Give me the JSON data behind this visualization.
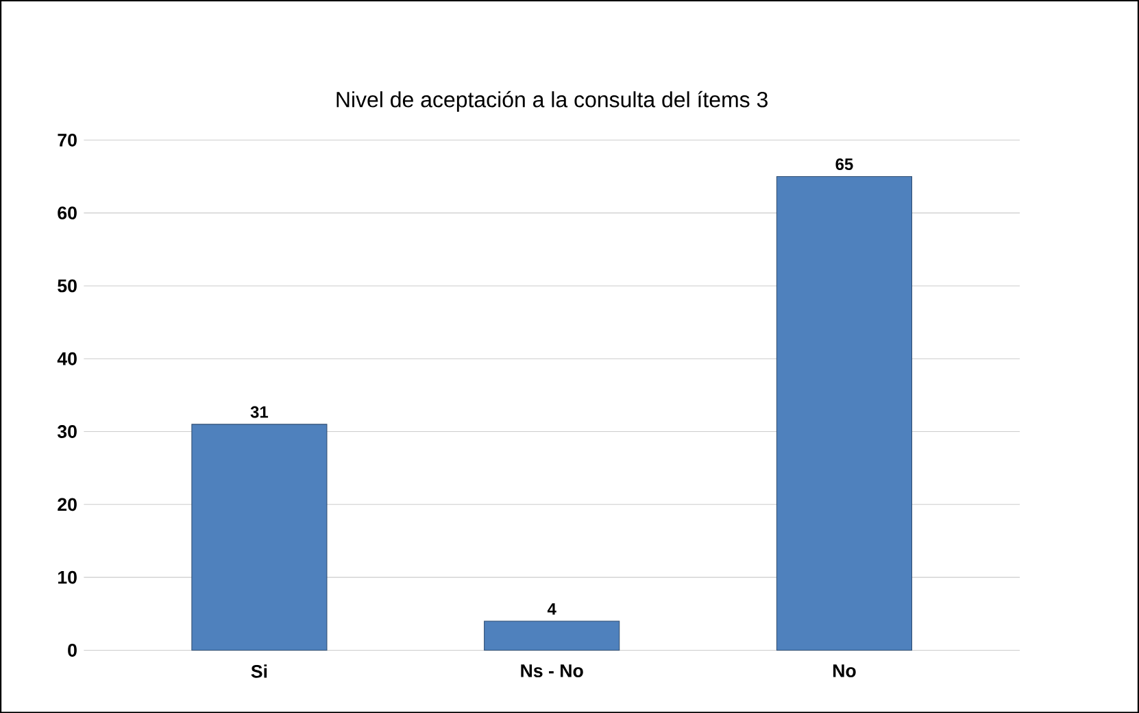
{
  "chart_data": {
    "type": "bar",
    "title": "Nivel de aceptación  a la consulta del ítems 3",
    "categories": [
      "Si",
      "Ns - No",
      "No"
    ],
    "values": [
      31,
      4,
      65
    ],
    "color": "#4f81bd",
    "ylim": [
      0,
      70
    ],
    "yticks": [
      0,
      10,
      20,
      30,
      40,
      50,
      60,
      70
    ],
    "grid": "y",
    "data_labels": true
  }
}
